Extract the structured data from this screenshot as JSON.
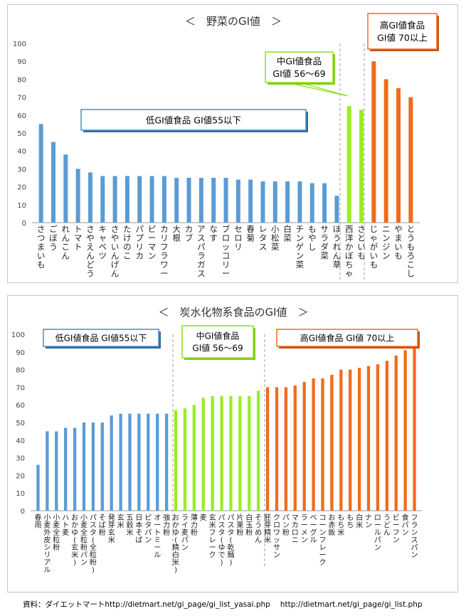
{
  "chart_data": [
    {
      "type": "bar",
      "title": "＜　野菜のGI値　＞",
      "xlabel": "",
      "ylabel": "",
      "ylim": [
        0,
        100
      ],
      "yticks": [
        0,
        10,
        20,
        30,
        40,
        50,
        60,
        70,
        80,
        90,
        100
      ],
      "grid": false,
      "categories": [
        "さつまいも",
        "ごぼう",
        "れんこん",
        "トマト",
        "さやえんどう",
        "キャベツ",
        "さやいんげん",
        "たけのこ",
        "パプリカ",
        "ピーマン",
        "カリフラワー",
        "大根",
        "カブ",
        "アスパラガス",
        "なす",
        "ブロッコリー",
        "セロリ",
        "春菊",
        "レタス",
        "小松菜",
        "白菜",
        "チンゲン菜",
        "もやし",
        "サラダ菜",
        "ほうれん草",
        "西洋かぼちゃ",
        "さといも",
        "じゃがいも",
        "ニンジン",
        "やまいも",
        "とうもろこし"
      ],
      "values": [
        55,
        45,
        38,
        30,
        28,
        26,
        26,
        26,
        26,
        26,
        26,
        25,
        25,
        25,
        25,
        25,
        24,
        24,
        23,
        23,
        23,
        23,
        22,
        22,
        15,
        65,
        63,
        90,
        80,
        75,
        70
      ],
      "groups": [
        {
          "label": "低GI値食品 GI値55以下",
          "color": "#5B9BD5",
          "start": 0,
          "end": 24
        },
        {
          "label": "中GI値食品\nGI値 56〜69",
          "color": "#99EE22",
          "start": 25,
          "end": 26
        },
        {
          "label": "高GI値食品\nGI値 70以上",
          "color": "#F26B1D",
          "start": 27,
          "end": 30
        }
      ]
    },
    {
      "type": "bar",
      "title": "＜　炭水化物系食品のGI値　＞",
      "xlabel": "",
      "ylabel": "",
      "ylim": [
        0,
        100
      ],
      "yticks": [
        0,
        10,
        20,
        30,
        40,
        50,
        60,
        70,
        80,
        90,
        100
      ],
      "grid": false,
      "categories": [
        "春雨",
        "小麦外皮シリアル",
        "小麦全粒粉",
        "ハト麦",
        "おかゆ(玄米)",
        "小麦全粒粉パン",
        "パスタ(全粒粉)",
        "そば粉",
        "発芽玄米",
        "玄米",
        "五穀米",
        "日本そば",
        "ピタパン",
        "オートミール",
        "強力粉",
        "おかゆ(精白米)",
        "ライ麦パン",
        "薄力粉",
        "麦",
        "玄米フレーク",
        "パスタ(ゆで)",
        "パスタ(乾麺)",
        "片栗粉",
        "白玉粉",
        "そうめん",
        "胚芽精米",
        "クロワッサン",
        "パン粉",
        "マカロニ",
        "ラーメン",
        "ベーグル",
        "コーンフレーク",
        "お赤飯",
        "もち米",
        "もち",
        "白米",
        "ナン",
        "ロールパン",
        "うどん",
        "ビーフン",
        "食パン",
        "フランスパン"
      ],
      "values": [
        26,
        45,
        45,
        47,
        47,
        50,
        50,
        50,
        54,
        55,
        55,
        55,
        55,
        55,
        55,
        57,
        58,
        60,
        64,
        65,
        65,
        65,
        65,
        65,
        68,
        70,
        70,
        70,
        71,
        73,
        75,
        75,
        77,
        80,
        80,
        81,
        82,
        83,
        85,
        88,
        91,
        95
      ],
      "groups": [
        {
          "label": "低GI値食品 GI値55以下",
          "color": "#5B9BD5",
          "start": 0,
          "end": 14
        },
        {
          "label": "中GI値食品\nGI値 56〜69",
          "color": "#99EE22",
          "start": 15,
          "end": 24
        },
        {
          "label": "高GI値食品 GI値 70以上",
          "color": "#F26B1D",
          "start": 25,
          "end": 41
        }
      ]
    }
  ],
  "source": {
    "prefix": "資料：ダイエットマートhttp://dietmart.net/gi_page/gi_list_yasai.php",
    "url2": "http://dietmart.net/gi_page/gi_list.php"
  }
}
